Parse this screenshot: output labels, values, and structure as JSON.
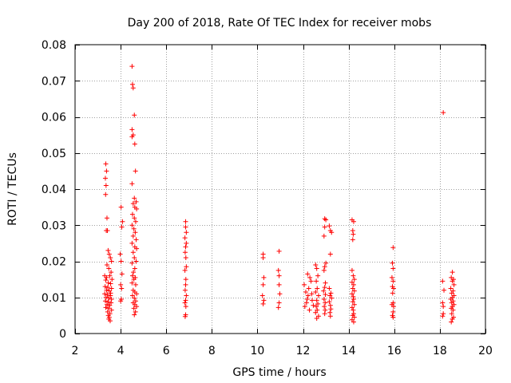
{
  "chart_data": {
    "type": "scatter",
    "title": "Day 200 of 2018, Rate Of TEC Index for receiver mobs",
    "xlabel": "GPS time / hours",
    "ylabel": "ROTI / TECUs",
    "xlim": [
      2,
      20
    ],
    "ylim": [
      0,
      0.08
    ],
    "x_ticks": [
      2,
      4,
      6,
      8,
      10,
      12,
      14,
      16,
      18,
      20
    ],
    "x_tick_labels": [
      "2",
      "4",
      "6",
      "8",
      "10",
      "12",
      "14",
      "16",
      "18",
      "20"
    ],
    "y_ticks": [
      0,
      0.01,
      0.02,
      0.03,
      0.04,
      0.05,
      0.06,
      0.07,
      0.08
    ],
    "y_tick_labels": [
      "0",
      "0.01",
      "0.02",
      "0.03",
      "0.04",
      "0.05",
      "0.06",
      "0.07",
      "0.08"
    ],
    "grid": true,
    "marker": "+",
    "series": [
      {
        "name": "ROTI",
        "color": "#ff0000",
        "points": [
          [
            3.35,
            0.047
          ],
          [
            3.38,
            0.045
          ],
          [
            3.33,
            0.043
          ],
          [
            3.36,
            0.041
          ],
          [
            3.34,
            0.0385
          ],
          [
            3.4,
            0.032
          ],
          [
            3.37,
            0.0285
          ],
          [
            3.42,
            0.0285
          ],
          [
            3.45,
            0.023
          ],
          [
            3.5,
            0.022
          ],
          [
            3.55,
            0.021
          ],
          [
            3.6,
            0.02
          ],
          [
            3.4,
            0.019
          ],
          [
            3.48,
            0.018
          ],
          [
            3.58,
            0.017
          ],
          [
            3.3,
            0.016
          ],
          [
            3.52,
            0.016
          ],
          [
            3.62,
            0.015
          ],
          [
            3.35,
            0.0148
          ],
          [
            3.46,
            0.014
          ],
          [
            3.56,
            0.0138
          ],
          [
            3.32,
            0.013
          ],
          [
            3.44,
            0.0128
          ],
          [
            3.6,
            0.0125
          ],
          [
            3.38,
            0.012
          ],
          [
            3.5,
            0.0118
          ],
          [
            3.3,
            0.011
          ],
          [
            3.42,
            0.0108
          ],
          [
            3.55,
            0.0105
          ],
          [
            3.36,
            0.01
          ],
          [
            3.48,
            0.0098
          ],
          [
            3.6,
            0.0095
          ],
          [
            3.33,
            0.009
          ],
          [
            3.45,
            0.0088
          ],
          [
            3.58,
            0.0085
          ],
          [
            3.4,
            0.008
          ],
          [
            3.52,
            0.0078
          ],
          [
            3.35,
            0.0072
          ],
          [
            3.47,
            0.007
          ],
          [
            3.6,
            0.0065
          ],
          [
            3.43,
            0.006
          ],
          [
            3.53,
            0.0055
          ],
          [
            3.46,
            0.005
          ],
          [
            3.5,
            0.0045
          ],
          [
            3.48,
            0.004
          ],
          [
            3.54,
            0.0035
          ],
          [
            3.38,
            0.0155
          ],
          [
            3.56,
            0.0112
          ],
          [
            4.02,
            0.035
          ],
          [
            4.08,
            0.031
          ],
          [
            4.05,
            0.0295
          ],
          [
            3.98,
            0.022
          ],
          [
            4.02,
            0.02
          ],
          [
            4.06,
            0.0165
          ],
          [
            4.0,
            0.0135
          ],
          [
            4.04,
            0.0125
          ],
          [
            4.03,
            0.0095
          ],
          [
            4.0,
            0.009
          ],
          [
            4.5,
            0.074
          ],
          [
            4.52,
            0.069
          ],
          [
            4.55,
            0.068
          ],
          [
            4.6,
            0.0605
          ],
          [
            4.5,
            0.0565
          ],
          [
            4.55,
            0.055
          ],
          [
            4.5,
            0.0545
          ],
          [
            4.62,
            0.0525
          ],
          [
            4.65,
            0.045
          ],
          [
            4.5,
            0.0415
          ],
          [
            4.6,
            0.0375
          ],
          [
            4.68,
            0.0365
          ],
          [
            4.55,
            0.036
          ],
          [
            4.62,
            0.035
          ],
          [
            4.7,
            0.0345
          ],
          [
            4.52,
            0.033
          ],
          [
            4.6,
            0.032
          ],
          [
            4.66,
            0.031
          ],
          [
            4.5,
            0.03
          ],
          [
            4.58,
            0.029
          ],
          [
            4.64,
            0.028
          ],
          [
            4.55,
            0.027
          ],
          [
            4.68,
            0.026
          ],
          [
            4.5,
            0.025
          ],
          [
            4.62,
            0.024
          ],
          [
            4.7,
            0.0235
          ],
          [
            4.55,
            0.0225
          ],
          [
            4.6,
            0.021
          ],
          [
            4.68,
            0.02
          ],
          [
            4.5,
            0.0195
          ],
          [
            4.62,
            0.018
          ],
          [
            4.56,
            0.017
          ],
          [
            4.52,
            0.016
          ],
          [
            4.64,
            0.0155
          ],
          [
            4.58,
            0.015
          ],
          [
            4.5,
            0.014
          ],
          [
            4.66,
            0.0135
          ],
          [
            4.55,
            0.012
          ],
          [
            4.62,
            0.0115
          ],
          [
            4.7,
            0.011
          ],
          [
            4.52,
            0.0105
          ],
          [
            4.6,
            0.0098
          ],
          [
            4.66,
            0.009
          ],
          [
            4.55,
            0.0085
          ],
          [
            4.62,
            0.008
          ],
          [
            4.7,
            0.0075
          ],
          [
            4.58,
            0.007
          ],
          [
            4.65,
            0.006
          ],
          [
            4.6,
            0.0052
          ],
          [
            6.85,
            0.031
          ],
          [
            6.85,
            0.0295
          ],
          [
            6.88,
            0.028
          ],
          [
            6.82,
            0.0265
          ],
          [
            6.88,
            0.025
          ],
          [
            6.85,
            0.024
          ],
          [
            6.83,
            0.0225
          ],
          [
            6.86,
            0.021
          ],
          [
            6.88,
            0.0185
          ],
          [
            6.82,
            0.0175
          ],
          [
            6.86,
            0.015
          ],
          [
            6.85,
            0.0135
          ],
          [
            6.83,
            0.012
          ],
          [
            6.88,
            0.0105
          ],
          [
            6.85,
            0.0092
          ],
          [
            6.82,
            0.0085
          ],
          [
            6.86,
            0.0075
          ],
          [
            6.85,
            0.0052
          ],
          [
            6.83,
            0.0047
          ],
          [
            10.25,
            0.022
          ],
          [
            10.25,
            0.021
          ],
          [
            10.28,
            0.0155
          ],
          [
            10.25,
            0.0135
          ],
          [
            10.22,
            0.0105
          ],
          [
            10.28,
            0.0092
          ],
          [
            10.25,
            0.0082
          ],
          [
            10.95,
            0.0228
          ],
          [
            10.92,
            0.0175
          ],
          [
            10.95,
            0.016
          ],
          [
            10.95,
            0.0135
          ],
          [
            10.98,
            0.011
          ],
          [
            10.95,
            0.0085
          ],
          [
            10.92,
            0.0072
          ],
          [
            12.05,
            0.0135
          ],
          [
            12.12,
            0.0115
          ],
          [
            12.18,
            0.0095
          ],
          [
            12.08,
            0.0075
          ],
          [
            12.22,
            0.0105
          ],
          [
            12.3,
            0.0155
          ],
          [
            12.15,
            0.0085
          ],
          [
            12.25,
            0.0125
          ],
          [
            12.35,
            0.0145
          ],
          [
            12.28,
            0.0065
          ],
          [
            12.4,
            0.0092
          ],
          [
            12.45,
            0.0078
          ],
          [
            12.2,
            0.0165
          ],
          [
            12.38,
            0.011
          ],
          [
            12.55,
            0.019
          ],
          [
            12.6,
            0.018
          ],
          [
            12.65,
            0.016
          ],
          [
            12.58,
            0.0145
          ],
          [
            12.62,
            0.0125
          ],
          [
            12.55,
            0.0115
          ],
          [
            12.68,
            0.0105
          ],
          [
            12.6,
            0.0092
          ],
          [
            12.65,
            0.0082
          ],
          [
            12.58,
            0.0075
          ],
          [
            12.62,
            0.0065
          ],
          [
            12.55,
            0.0058
          ],
          [
            12.68,
            0.0048
          ],
          [
            12.6,
            0.0042
          ],
          [
            12.95,
            0.0318
          ],
          [
            13.0,
            0.0315
          ],
          [
            12.95,
            0.0295
          ],
          [
            12.92,
            0.027
          ],
          [
            13.0,
            0.0195
          ],
          [
            12.95,
            0.0185
          ],
          [
            12.92,
            0.0175
          ],
          [
            12.98,
            0.014
          ],
          [
            12.95,
            0.0128
          ],
          [
            12.9,
            0.0118
          ],
          [
            12.98,
            0.0108
          ],
          [
            12.92,
            0.0095
          ],
          [
            12.97,
            0.0085
          ],
          [
            12.93,
            0.0075
          ],
          [
            12.97,
            0.0065
          ],
          [
            12.95,
            0.0055
          ],
          [
            13.15,
            0.0298
          ],
          [
            13.2,
            0.0285
          ],
          [
            13.25,
            0.028
          ],
          [
            13.2,
            0.022
          ],
          [
            13.15,
            0.0125
          ],
          [
            13.22,
            0.0112
          ],
          [
            13.18,
            0.0105
          ],
          [
            13.25,
            0.0098
          ],
          [
            13.15,
            0.0088
          ],
          [
            13.2,
            0.0078
          ],
          [
            13.22,
            0.0068
          ],
          [
            13.18,
            0.0058
          ],
          [
            13.2,
            0.0048
          ],
          [
            14.15,
            0.0315
          ],
          [
            14.22,
            0.031
          ],
          [
            14.18,
            0.0285
          ],
          [
            14.2,
            0.0275
          ],
          [
            14.18,
            0.026
          ],
          [
            14.15,
            0.0175
          ],
          [
            14.2,
            0.016
          ],
          [
            14.25,
            0.015
          ],
          [
            14.15,
            0.0142
          ],
          [
            14.22,
            0.0135
          ],
          [
            14.18,
            0.0125
          ],
          [
            14.25,
            0.0118
          ],
          [
            14.15,
            0.011
          ],
          [
            14.2,
            0.0102
          ],
          [
            14.22,
            0.0095
          ],
          [
            14.18,
            0.0088
          ],
          [
            14.25,
            0.008
          ],
          [
            14.15,
            0.0072
          ],
          [
            14.2,
            0.0065
          ],
          [
            14.22,
            0.0055
          ],
          [
            14.18,
            0.005
          ],
          [
            14.25,
            0.0045
          ],
          [
            14.15,
            0.0038
          ],
          [
            14.22,
            0.0032
          ],
          [
            15.95,
            0.0238
          ],
          [
            15.92,
            0.0195
          ],
          [
            15.95,
            0.018
          ],
          [
            15.9,
            0.0155
          ],
          [
            15.95,
            0.0145
          ],
          [
            15.92,
            0.013
          ],
          [
            15.97,
            0.0125
          ],
          [
            15.93,
            0.0112
          ],
          [
            15.95,
            0.0085
          ],
          [
            15.9,
            0.008
          ],
          [
            15.97,
            0.0075
          ],
          [
            15.95,
            0.006
          ],
          [
            15.92,
            0.005
          ],
          [
            15.95,
            0.0045
          ],
          [
            18.15,
            0.0612
          ],
          [
            18.12,
            0.0145
          ],
          [
            18.18,
            0.012
          ],
          [
            18.12,
            0.0085
          ],
          [
            18.15,
            0.0075
          ],
          [
            18.15,
            0.0055
          ],
          [
            18.12,
            0.0048
          ],
          [
            18.55,
            0.017
          ],
          [
            18.5,
            0.0155
          ],
          [
            18.6,
            0.015
          ],
          [
            18.55,
            0.0145
          ],
          [
            18.62,
            0.0135
          ],
          [
            18.48,
            0.0125
          ],
          [
            18.58,
            0.0118
          ],
          [
            18.52,
            0.0112
          ],
          [
            18.62,
            0.0105
          ],
          [
            18.55,
            0.01
          ],
          [
            18.48,
            0.0095
          ],
          [
            18.58,
            0.009
          ],
          [
            18.52,
            0.0085
          ],
          [
            18.62,
            0.008
          ],
          [
            18.55,
            0.0075
          ],
          [
            18.5,
            0.007
          ],
          [
            18.58,
            0.0065
          ],
          [
            18.52,
            0.0055
          ],
          [
            18.6,
            0.0045
          ],
          [
            18.55,
            0.004
          ],
          [
            18.5,
            0.0032
          ]
        ]
      }
    ]
  }
}
